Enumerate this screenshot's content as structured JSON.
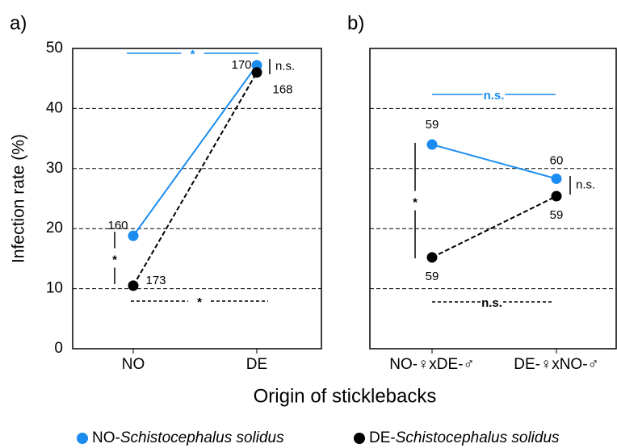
{
  "chart_data": [
    {
      "type": "line",
      "panel": "a)",
      "ylabel": "Infection rate (%)",
      "xlabel": "Origin of sticklebacks",
      "categories": [
        "NO",
        "DE"
      ],
      "ylim": [
        0,
        50
      ],
      "yticks": [
        0,
        10,
        20,
        30,
        40,
        50
      ],
      "grid": true,
      "series": [
        {
          "name": "NO-Schistocephalus solidus",
          "color": "#1a8cf0",
          "values": [
            18.8,
            47.2
          ],
          "n": [
            160,
            170
          ]
        },
        {
          "name": "DE-Schistocephalus solidus",
          "color": "#000000",
          "values": [
            10.5,
            46
          ],
          "n": [
            173,
            168
          ]
        }
      ],
      "significance": {
        "top": "*",
        "right": "n.s.",
        "left": "*",
        "bottom": "*"
      }
    },
    {
      "type": "line",
      "panel": "b)",
      "categories": [
        "NO-♀xDE-♂",
        "DE-♀xNO-♂"
      ],
      "ylim": [
        0,
        50
      ],
      "yticks": [
        0,
        10,
        20,
        30,
        40,
        50
      ],
      "grid": true,
      "series": [
        {
          "color": "#1a8cf0",
          "values": [
            34,
            28.3
          ],
          "n": [
            59,
            60
          ]
        },
        {
          "color": "#000000",
          "values": [
            15.2,
            25.4
          ],
          "n": [
            59,
            59
          ]
        }
      ],
      "significance": {
        "top": "n.s.",
        "right": "n.s.",
        "left": "*",
        "bottom": "n.s."
      }
    }
  ]
}
